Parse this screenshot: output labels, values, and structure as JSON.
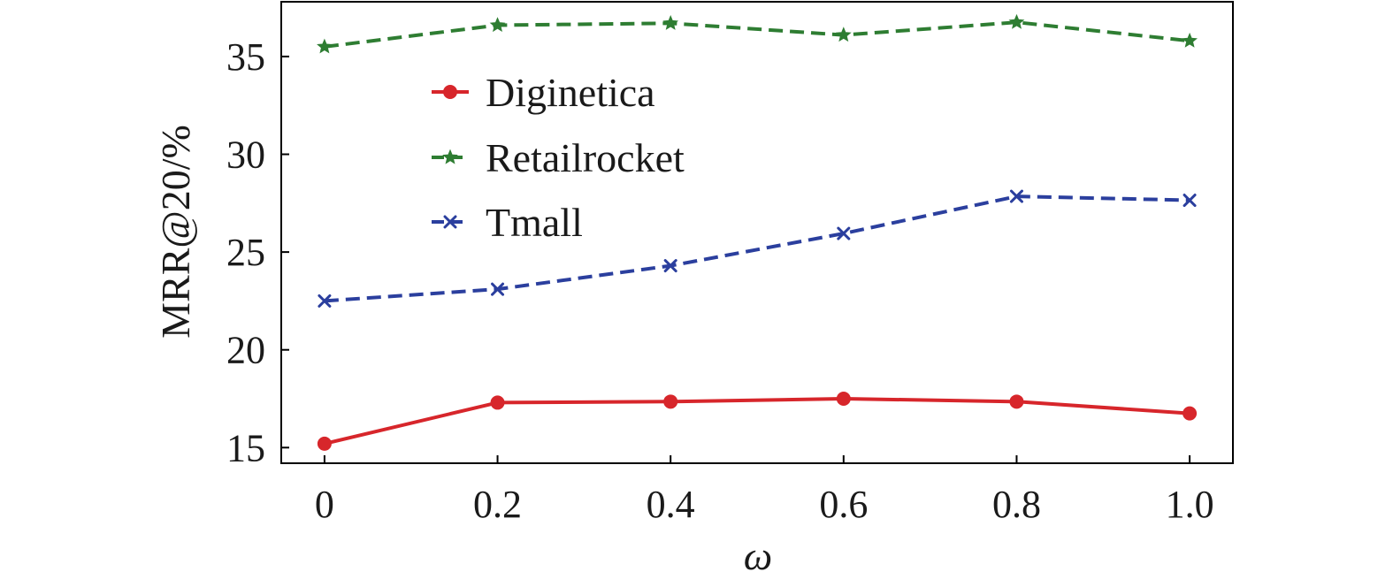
{
  "chart_data": {
    "type": "line",
    "xlabel": "ω",
    "ylabel": "MRR@20/%",
    "x": [
      0,
      0.2,
      0.4,
      0.6,
      0.8,
      1.0
    ],
    "x_tick_labels": [
      "0",
      "0.2",
      "0.4",
      "0.6",
      "0.8",
      "1.0"
    ],
    "y_ticks": [
      15,
      20,
      25,
      30,
      35
    ],
    "y_tick_labels": [
      "15",
      "20",
      "25",
      "30",
      "35"
    ],
    "xlim": [
      -0.05,
      1.05
    ],
    "ylim": [
      14.2,
      37.8
    ],
    "grid": false,
    "legend_position": "upper-left inside",
    "series": [
      {
        "name": "Diginetica",
        "values": [
          15.2,
          17.3,
          17.35,
          17.5,
          17.35,
          16.75
        ],
        "color": "#d7262b",
        "marker": "circle",
        "line": "solid"
      },
      {
        "name": "Retailrocket",
        "values": [
          35.5,
          36.6,
          36.7,
          36.1,
          36.75,
          35.8
        ],
        "color": "#2e7d32",
        "marker": "star",
        "line": "dashed"
      },
      {
        "name": "Tmall",
        "values": [
          22.5,
          23.1,
          24.3,
          25.95,
          27.85,
          27.65
        ],
        "color": "#2b3f9e",
        "marker": "x",
        "line": "dashed"
      }
    ]
  }
}
